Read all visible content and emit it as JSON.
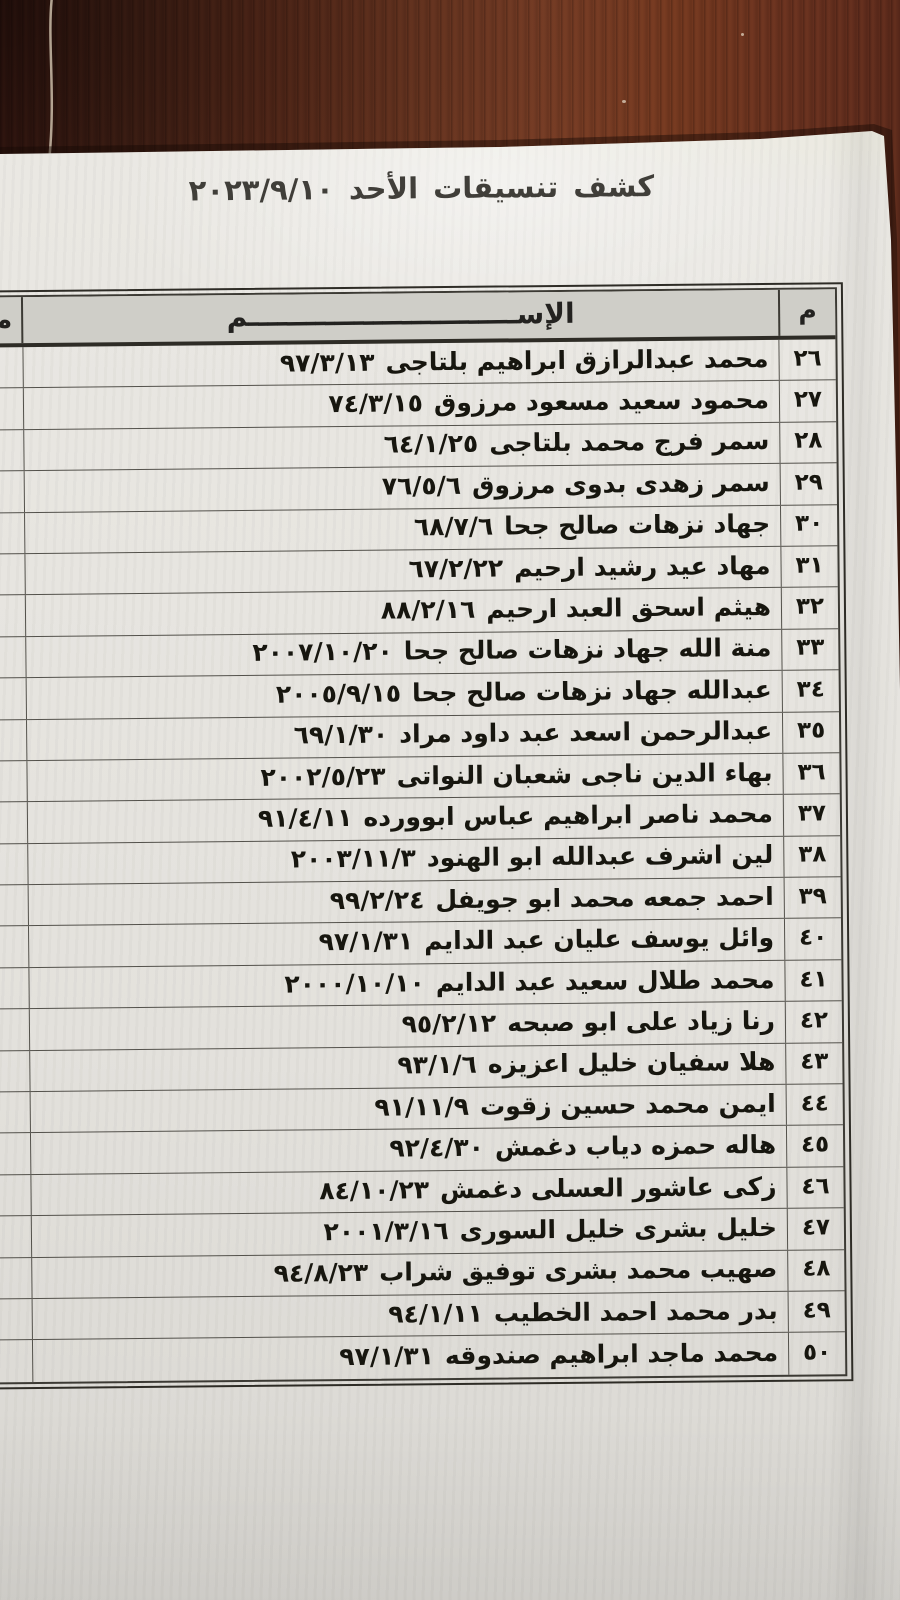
{
  "document": {
    "title": "كشف تنسيقات الأحد ٢٠٢٣/٩/١٠",
    "table": {
      "header": {
        "index_label": "م",
        "name_label": "الإســــــــــــــــــــــــــــم",
        "left_column_fragment": "م"
      },
      "rows": [
        {
          "num": "٢٦",
          "name": "محمد عبدالرازق ابراهيم بلتاجى",
          "date": "٩٧/٣/١٣"
        },
        {
          "num": "٢٧",
          "name": "محمود سعيد مسعود مرزوق",
          "date": "٧٤/٣/١٥"
        },
        {
          "num": "٢٨",
          "name": "سمر فرج محمد بلتاجى",
          "date": "٦٤/١/٢٥"
        },
        {
          "num": "٢٩",
          "name": "سمر زهدى بدوى مرزوق",
          "date": "٧٦/٥/٦"
        },
        {
          "num": "٣٠",
          "name": "جهاد نزهات صالح جحا",
          "date": "٦٨/٧/٦"
        },
        {
          "num": "٣١",
          "name": "مهاد عيد رشيد ارحيم",
          "date": "٦٧/٢/٢٢"
        },
        {
          "num": "٣٢",
          "name": "هيثم اسحق العبد ارحيم",
          "date": "٨٨/٢/١٦"
        },
        {
          "num": "٣٣",
          "name": "منة الله جهاد نزهات صالح جحا",
          "date": "٢٠٠٧/١٠/٢٠"
        },
        {
          "num": "٣٤",
          "name": "عبدالله جهاد نزهات صالح جحا",
          "date": "٢٠٠٥/٩/١٥"
        },
        {
          "num": "٣٥",
          "name": "عبدالرحمن اسعد عبد داود مراد",
          "date": "٦٩/١/٣٠"
        },
        {
          "num": "٣٦",
          "name": "بهاء الدين ناجى شعبان النواتى",
          "date": "٢٠٠٢/٥/٢٣"
        },
        {
          "num": "٣٧",
          "name": "محمد ناصر ابراهيم عباس ابوورده",
          "date": "٩١/٤/١١"
        },
        {
          "num": "٣٨",
          "name": "لين اشرف عبدالله ابو الهنود",
          "date": "٢٠٠٣/١١/٣"
        },
        {
          "num": "٣٩",
          "name": "احمد جمعه محمد ابو جويفل",
          "date": "٩٩/٢/٢٤"
        },
        {
          "num": "٤٠",
          "name": "وائل يوسف عليان عبد الدايم",
          "date": "٩٧/١/٣١"
        },
        {
          "num": "٤١",
          "name": "محمد طلال سعيد عبد الدايم",
          "date": "٢٠٠٠/١٠/١٠"
        },
        {
          "num": "٤٢",
          "name": "رنا زياد على ابو صبحه",
          "date": "٩٥/٢/١٢"
        },
        {
          "num": "٤٣",
          "name": "هلا سفيان خليل اعزيزه",
          "date": "٩٣/١/٦"
        },
        {
          "num": "٤٤",
          "name": "ايمن محمد حسين زقوت",
          "date": "٩١/١١/٩"
        },
        {
          "num": "٤٥",
          "name": "هاله حمزه دياب دغمش",
          "date": "٩٢/٤/٣٠"
        },
        {
          "num": "٤٦",
          "name": "زكى عاشور العسلى دغمش",
          "date": "٨٤/١٠/٢٣"
        },
        {
          "num": "٤٧",
          "name": "خليل بشرى خليل السورى",
          "date": "٢٠٠١/٣/١٦"
        },
        {
          "num": "٤٨",
          "name": "صهيب محمد بشرى توفيق شراب",
          "date": "٩٤/٨/٢٣"
        },
        {
          "num": "٤٩",
          "name": "بدر محمد احمد الخطيب",
          "date": "٩٤/١/١١"
        },
        {
          "num": "٥٠",
          "name": "محمد ماجد ابراهيم صندوقه",
          "date": "٩٧/١/٣١"
        }
      ]
    }
  },
  "colors": {
    "wood": "#6b3422",
    "paper": "#e8e6e1",
    "ink": "#17160f",
    "table_border": "#2e2c26",
    "header_fill": "#cfcec8"
  }
}
